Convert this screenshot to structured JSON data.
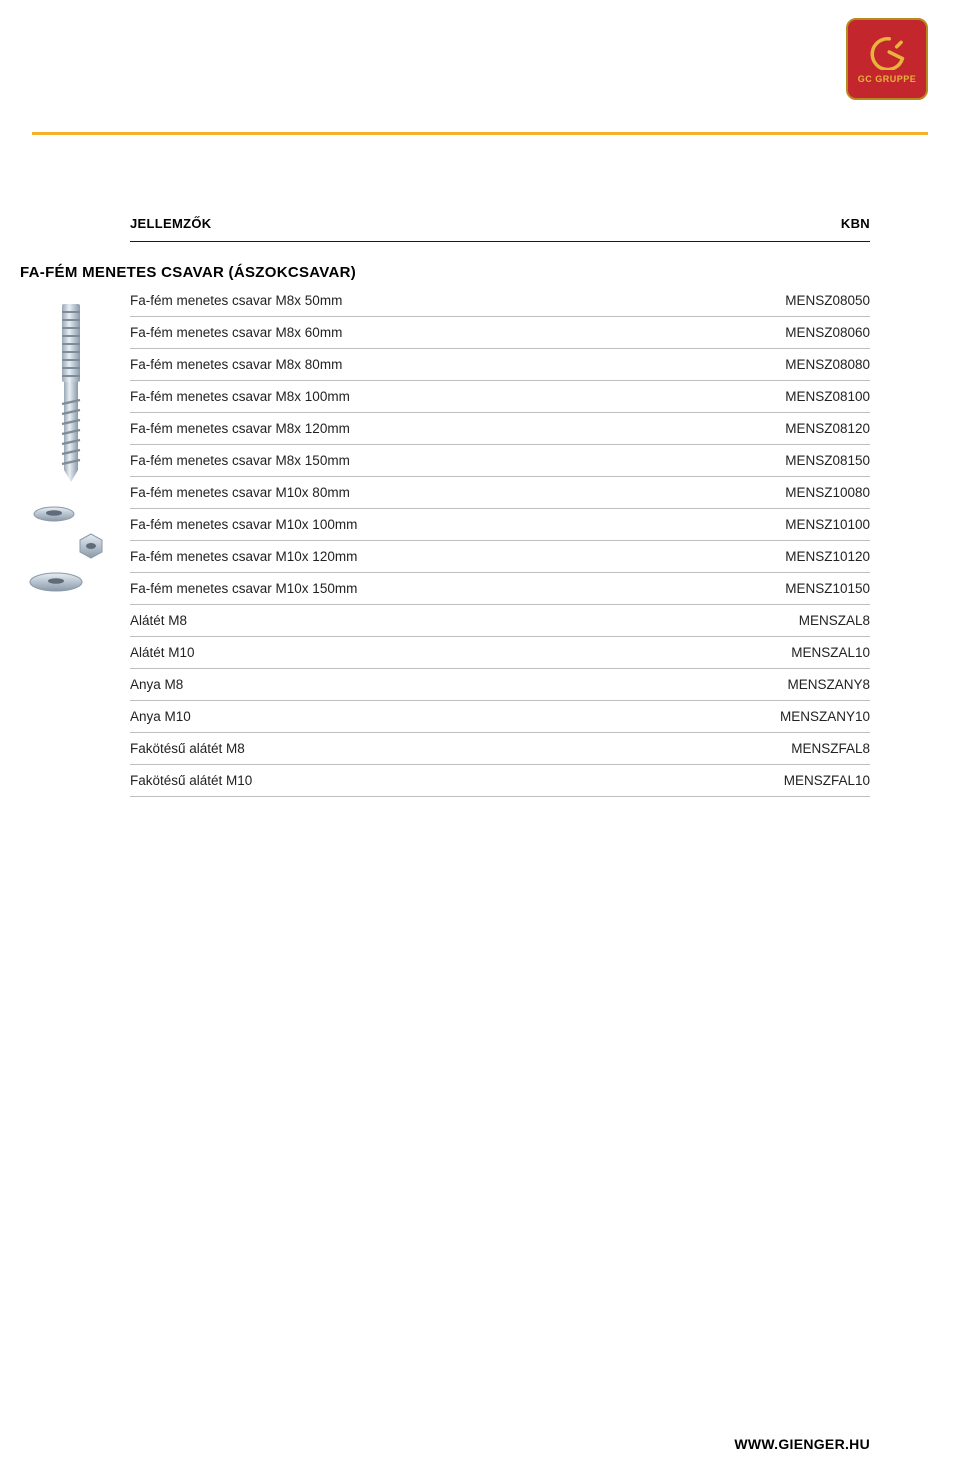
{
  "colors": {
    "badge_bg": "#c4262e",
    "badge_border": "#b58a1e",
    "badge_fg": "#e7b43c",
    "rule": "#f3b229",
    "text": "#1a1a1a"
  },
  "logo_text": "GC GRUPPE",
  "header": {
    "left": "JELLEMZŐK",
    "right": "KBN"
  },
  "section_title": "FA-FÉM MENETES CSAVAR (ÁSZOKCSAVAR)",
  "rows": [
    {
      "name": "Fa-fém menetes csavar M8x 50mm",
      "code": "MENSZ08050"
    },
    {
      "name": "Fa-fém menetes csavar M8x 60mm",
      "code": "MENSZ08060"
    },
    {
      "name": "Fa-fém menetes csavar M8x 80mm",
      "code": "MENSZ08080"
    },
    {
      "name": "Fa-fém menetes csavar M8x 100mm",
      "code": "MENSZ08100"
    },
    {
      "name": "Fa-fém menetes csavar M8x 120mm",
      "code": "MENSZ08120"
    },
    {
      "name": "Fa-fém menetes csavar M8x 150mm",
      "code": "MENSZ08150"
    },
    {
      "name": "Fa-fém menetes csavar M10x 80mm",
      "code": "MENSZ10080"
    },
    {
      "name": "Fa-fém menetes csavar M10x 100mm",
      "code": "MENSZ10100"
    },
    {
      "name": "Fa-fém menetes csavar M10x 120mm",
      "code": "MENSZ10120"
    },
    {
      "name": "Fa-fém menetes csavar M10x 150mm",
      "code": "MENSZ10150"
    },
    {
      "name": "Alátét M8",
      "code": "MENSZAL8"
    },
    {
      "name": "Alátét M10",
      "code": "MENSZAL10"
    },
    {
      "name": "Anya M8",
      "code": "MENSZANY8"
    },
    {
      "name": "Anya M10",
      "code": "MENSZANY10"
    },
    {
      "name": "Fakötésű alátét M8",
      "code": "MENSZFAL8"
    },
    {
      "name": "Fakötésű alátét M10",
      "code": "MENSZFAL10"
    }
  ],
  "footer_url": "WWW.GIENGER.HU"
}
